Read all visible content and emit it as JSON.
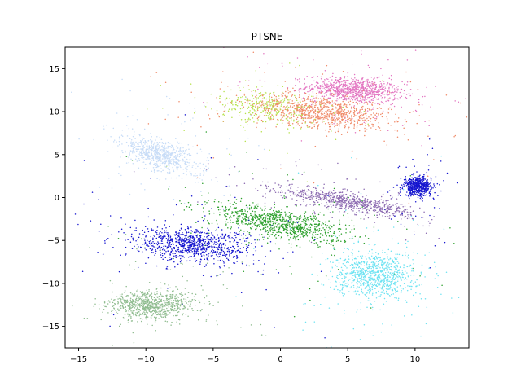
{
  "chart_data": {
    "type": "scatter",
    "title": "PTSNE",
    "xlabel": "",
    "ylabel": "",
    "xlim": [
      -16,
      14
    ],
    "ylim": [
      -17.5,
      17.5
    ],
    "xticks": [
      -15,
      -10,
      -5,
      0,
      5,
      10
    ],
    "yticks": [
      -15,
      -10,
      -5,
      0,
      5,
      10,
      15
    ],
    "grid": false,
    "legend": false,
    "clusters": [
      {
        "color": "#e377c2",
        "center": [
          5.5,
          12.5
        ],
        "spread": [
          3.2,
          1.3
        ],
        "tilt": -0.12,
        "density": 1.0
      },
      {
        "color": "#f08a68",
        "center": [
          3.0,
          10.0
        ],
        "spread": [
          4.6,
          1.6
        ],
        "tilt": -0.18,
        "density": 1.0
      },
      {
        "color": "#b6e14b",
        "center": [
          -1.0,
          10.5
        ],
        "spread": [
          3.5,
          1.8
        ],
        "tilt": -0.2,
        "density": 0.35
      },
      {
        "color": "#c7dcf7",
        "center": [
          -9.0,
          5.0
        ],
        "spread": [
          3.0,
          1.4
        ],
        "tilt": -0.6,
        "density": 0.8
      },
      {
        "color": "#8c6bb1",
        "center": [
          5.0,
          -0.5
        ],
        "spread": [
          4.6,
          0.9
        ],
        "tilt": -0.28,
        "density": 0.8
      },
      {
        "color": "#1515cf",
        "center": [
          10.2,
          1.3
        ],
        "spread": [
          0.9,
          1.0
        ],
        "tilt": 0.0,
        "density": 0.6
      },
      {
        "color": "#2ca02c",
        "center": [
          0.0,
          -3.0
        ],
        "spread": [
          4.5,
          1.6
        ],
        "tilt": -0.3,
        "density": 1.0
      },
      {
        "color": "#1515cf",
        "center": [
          -6.5,
          -5.5
        ],
        "spread": [
          4.0,
          1.8
        ],
        "tilt": -0.12,
        "density": 1.0
      },
      {
        "color": "#6ee3f2",
        "center": [
          7.0,
          -9.0
        ],
        "spread": [
          2.6,
          2.4
        ],
        "tilt": 0.0,
        "density": 1.0
      },
      {
        "color": "#8fbc8f",
        "center": [
          -9.5,
          -12.5
        ],
        "spread": [
          2.9,
          1.5
        ],
        "tilt": 0.05,
        "density": 0.9
      }
    ]
  }
}
